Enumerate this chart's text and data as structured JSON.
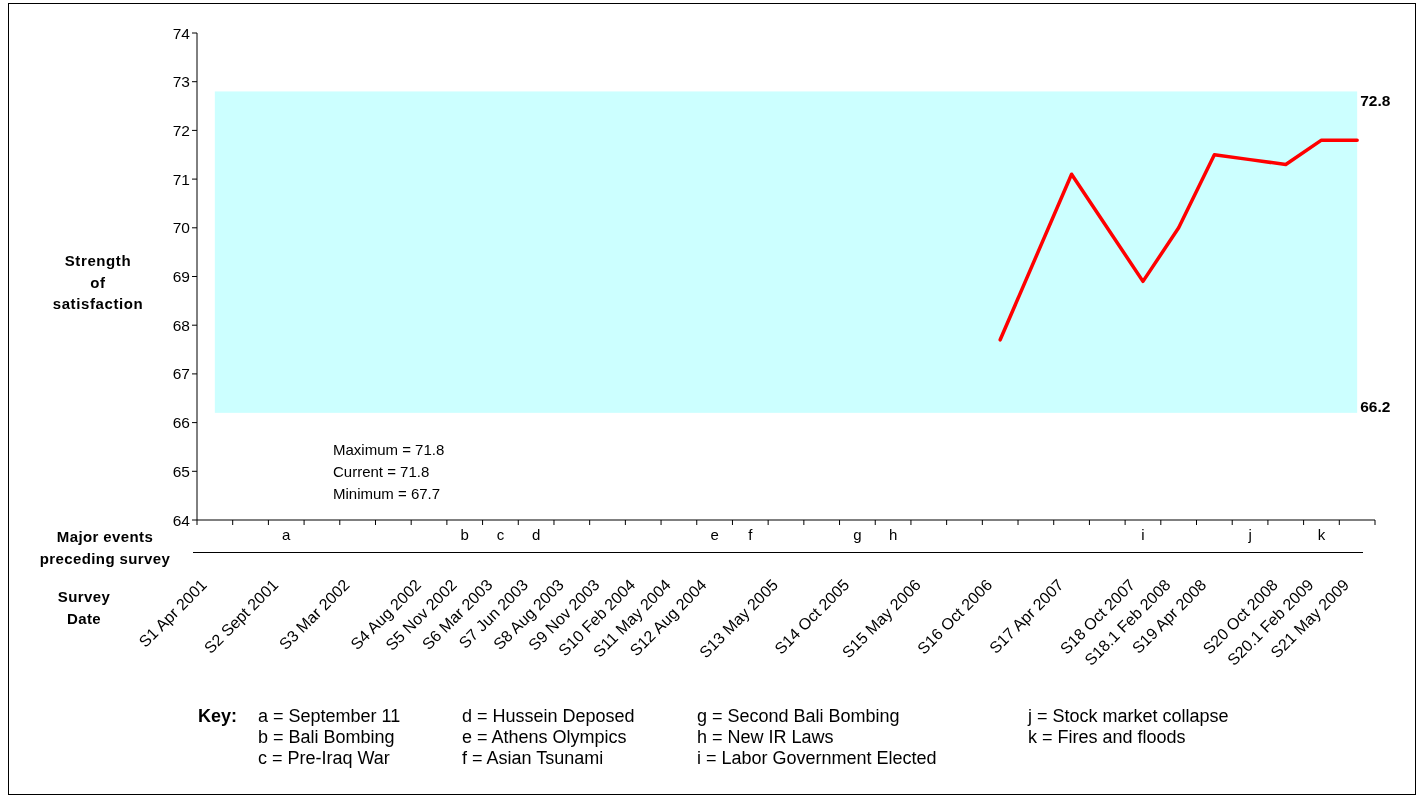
{
  "chart_data": {
    "type": "line",
    "xlabel": "Survey Date",
    "ylabel": "Strength of satisfaction",
    "categories": [
      "S1 Apr 2001",
      null,
      "S2 Sept 2001",
      null,
      "S3 Mar 2002",
      null,
      "S4 Aug 2002",
      "S5 Nov 2002",
      "S6 Mar 2003",
      "S7 Jun 2003",
      "S8 Aug 2003",
      "S9 Nov 2003",
      "S10 Feb 2004",
      "S11 May 2004",
      "S12 Aug 2004",
      null,
      "S13 May 2005",
      null,
      "S14 Oct 2005",
      null,
      "S15 May 2006",
      null,
      "S16 Oct 2006",
      null,
      "S17 Apr 2007",
      null,
      "S18 Oct 2007",
      "S18.1 Feb 2008",
      "S19 Apr 2008",
      null,
      "S20 Oct 2008",
      "S20.1 Feb 2009",
      "S21 May 2009"
    ],
    "series": [
      {
        "color": "#ff0000",
        "values": [
          null,
          null,
          null,
          null,
          null,
          null,
          null,
          null,
          null,
          null,
          null,
          null,
          null,
          null,
          null,
          null,
          null,
          null,
          null,
          null,
          null,
          null,
          67.7,
          null,
          71.1,
          null,
          68.9,
          70.0,
          71.5,
          71.4,
          71.3,
          71.8,
          71.8
        ]
      },
      {
        "type": "other",
        "name": "Major events preceding survey",
        "values": [
          null,
          null,
          null,
          null,
          null,
          null,
          null,
          null,
          null,
          null,
          null,
          null,
          null,
          null,
          null,
          null,
          null,
          null,
          null,
          null,
          null,
          null,
          null,
          null,
          null,
          null,
          null,
          null,
          null,
          null,
          null,
          null,
          null
        ],
        "value_labels": [
          null,
          null,
          "a",
          null,
          null,
          null,
          null,
          "b",
          "c",
          "d",
          null,
          null,
          null,
          null,
          "e",
          "f",
          null,
          null,
          "g",
          "h",
          null,
          null,
          null,
          null,
          null,
          null,
          "i",
          null,
          null,
          "j",
          null,
          "k",
          null
        ]
      }
    ],
    "ylim": [
      64,
      74
    ],
    "yticks": [
      64,
      65,
      66,
      67,
      68,
      69,
      70,
      71,
      72,
      73,
      74
    ],
    "marker": "none",
    "bands": [
      {
        "axis": "y",
        "from": 66.2,
        "to": 72.8,
        "color": "#ccffff"
      }
    ],
    "annotations": [
      "72.8",
      "66.2",
      "Maximum = 71.8",
      "Current = 71.8",
      "Minimum = 67.7",
      "Key:",
      "a = September 11",
      "b = Bali Bombing",
      "c = Pre-Iraq War",
      "d = Hussein Deposed",
      "e = Athens Olympics",
      "f = Asian Tsunami",
      "g = Second Bali Bombing",
      "h = New IR Laws",
      "i = Labor Government Elected",
      "j = Stock market collapse",
      "k = Fires and floods"
    ]
  }
}
